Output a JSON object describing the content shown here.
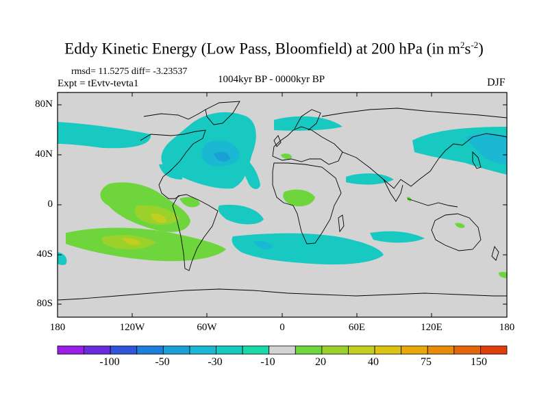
{
  "title": {
    "prefix": "Eddy Kinetic Energy (Low Pass, Bloomfield) at 200 hPa (in m",
    "sup1": "2",
    "mid": "s",
    "sup2": "-2",
    "suffix": ")"
  },
  "stats": {
    "rmsd_text": "rmsd= 11.5275 diff= -3.23537"
  },
  "experiment": "Expt = tEvtv-tevta1",
  "period": "1004kyr BP - 0000kyr BP",
  "season": "DJF",
  "map": {
    "land_fill": "#d3d3d3",
    "lat_labels": [
      "80N",
      "40N",
      "0",
      "40S",
      "80S"
    ],
    "lon_labels": [
      "180",
      "120W",
      "60W",
      "0",
      "60E",
      "120E",
      "180"
    ]
  },
  "colorbar": {
    "colors": [
      "#9a1fe6",
      "#6a2bdc",
      "#2f55d8",
      "#1d7fd9",
      "#1aa0d4",
      "#1ab8d2",
      "#17c9c1",
      "#19d9a6",
      "#d3d3d3",
      "#6ed63c",
      "#9bd12a",
      "#c2cf20",
      "#dcc313",
      "#e8a80c",
      "#e88a0a",
      "#e4660a",
      "#dc3e0c"
    ],
    "labels": [
      "-100",
      "-50",
      "-30",
      "-10",
      "20",
      "40",
      "75",
      "150"
    ]
  }
}
